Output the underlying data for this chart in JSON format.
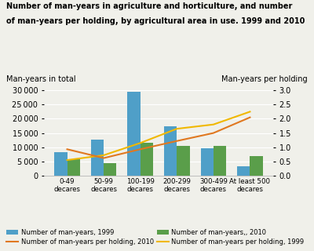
{
  "title_line1": "Number of man-years in agriculture and horticulture, and number",
  "title_line2": "of man-years per holding, by agricultural area in use. 1999 and 2010",
  "categories": [
    "0-49\ndecares",
    "50-99\ndecares",
    "100-199\ndecares",
    "200-299\ndecares",
    "300-499\ndecares",
    "At least 500\ndecares"
  ],
  "bar_1999": [
    8300,
    12800,
    29500,
    17500,
    9600,
    3400
  ],
  "bar_2010": [
    5800,
    4500,
    11600,
    10500,
    10400,
    7000
  ],
  "line_1999": [
    0.55,
    0.72,
    1.15,
    1.65,
    1.8,
    2.25
  ],
  "line_2010": [
    0.93,
    0.62,
    0.93,
    1.22,
    1.5,
    2.05
  ],
  "bar_color_1999": "#4f9fc8",
  "bar_color_2010": "#5a9e4a",
  "line_color_1999": "#f0b800",
  "line_color_2010": "#e07820",
  "ylabel_left": "Man-years in total",
  "ylabel_right": "Man-years per holding",
  "ylim_left": [
    0,
    30000
  ],
  "ylim_right": [
    0,
    3.0
  ],
  "yticks_left": [
    0,
    5000,
    10000,
    15000,
    20000,
    25000,
    30000
  ],
  "yticks_right": [
    0.0,
    0.5,
    1.0,
    1.5,
    2.0,
    2.5,
    3.0
  ],
  "legend_labels": [
    "Number of man-years, 1999",
    "Number of man-years,, 2010",
    "Number of man-years per holding, 2010",
    "Number of man-years per holding, 1999"
  ],
  "bar_width": 0.35,
  "background_color": "#f0f0ea"
}
